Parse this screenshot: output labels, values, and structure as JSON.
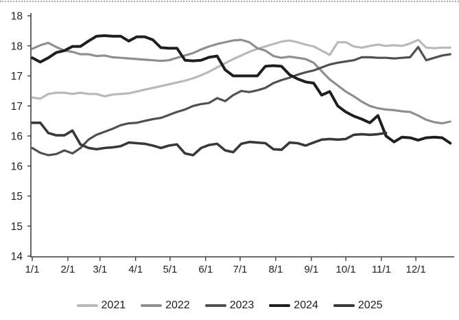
{
  "page": {
    "background": "#ffffff"
  },
  "chart_data": {
    "type": "line",
    "title": "",
    "grid": false,
    "legend_position": "bottom",
    "x_axis": {
      "unit": "month-day",
      "tick_labels": [
        "1/1",
        "2/1",
        "3/1",
        "4/1",
        "5/1",
        "6/1",
        "7/1",
        "8/1",
        "9/1",
        "10/1",
        "11/1",
        "12/1"
      ],
      "month_start_days": [
        0,
        31,
        59,
        90,
        120,
        151,
        181,
        212,
        243,
        273,
        304,
        334
      ],
      "days_in_year": 365
    },
    "y_axis": {
      "min": 14,
      "max": 18,
      "step": 0.5,
      "tick_values_top_to_bottom": [
        18,
        17.5,
        17,
        16.5,
        16,
        15.5,
        15,
        14.5,
        14
      ],
      "tick_labels_top_to_bottom": [
        "18",
        "18",
        "17",
        "17",
        "16",
        "16",
        "15",
        "15",
        "14"
      ]
    },
    "sampling": {
      "interval_days": 7,
      "first_day": 0
    },
    "series": [
      {
        "name": "2021",
        "color": "#b9b9b9",
        "stroke_width": 3.2,
        "values": [
          16.64,
          16.62,
          16.7,
          16.72,
          16.72,
          16.7,
          16.72,
          16.7,
          16.7,
          16.66,
          16.69,
          16.7,
          16.71,
          16.74,
          16.77,
          16.8,
          16.83,
          16.86,
          16.89,
          16.92,
          16.96,
          17.01,
          17.07,
          17.14,
          17.21,
          17.28,
          17.34,
          17.4,
          17.45,
          17.49,
          17.53,
          17.57,
          17.59,
          17.56,
          17.52,
          17.49,
          17.42,
          17.35,
          17.56,
          17.56,
          17.49,
          17.47,
          17.5,
          17.52,
          17.5,
          17.51,
          17.5,
          17.54,
          17.6,
          17.47,
          17.46,
          17.47,
          17.47
        ]
      },
      {
        "name": "2022",
        "color": "#8e8e8e",
        "stroke_width": 3.2,
        "values": [
          17.45,
          17.51,
          17.55,
          17.48,
          17.42,
          17.4,
          17.36,
          17.36,
          17.33,
          17.34,
          17.31,
          17.3,
          17.29,
          17.28,
          17.27,
          17.26,
          17.25,
          17.26,
          17.3,
          17.34,
          17.38,
          17.44,
          17.49,
          17.53,
          17.56,
          17.59,
          17.6,
          17.56,
          17.46,
          17.42,
          17.33,
          17.3,
          17.32,
          17.3,
          17.28,
          17.22,
          17.08,
          16.94,
          16.84,
          16.74,
          16.66,
          16.57,
          16.5,
          16.46,
          16.44,
          16.43,
          16.41,
          16.4,
          16.34,
          16.27,
          16.23,
          16.21,
          16.24
        ]
      },
      {
        "name": "2023",
        "color": "#505050",
        "stroke_width": 3.2,
        "values": [
          15.8,
          15.72,
          15.68,
          15.7,
          15.76,
          15.71,
          15.8,
          15.94,
          16.02,
          16.07,
          16.12,
          16.18,
          16.21,
          16.22,
          16.25,
          16.28,
          16.3,
          16.35,
          16.4,
          16.44,
          16.5,
          16.53,
          16.55,
          16.63,
          16.58,
          16.68,
          16.75,
          16.73,
          16.76,
          16.8,
          16.88,
          16.93,
          16.97,
          17.02,
          17.06,
          17.09,
          17.14,
          17.19,
          17.22,
          17.24,
          17.26,
          17.31,
          17.31,
          17.3,
          17.3,
          17.29,
          17.3,
          17.31,
          17.48,
          17.26,
          17.3,
          17.34,
          17.36
        ]
      },
      {
        "name": "2024",
        "color": "#1e1e1e",
        "stroke_width": 4,
        "values": [
          17.3,
          17.23,
          17.3,
          17.39,
          17.42,
          17.49,
          17.49,
          17.58,
          17.66,
          17.67,
          17.66,
          17.66,
          17.58,
          17.65,
          17.65,
          17.6,
          17.47,
          17.46,
          17.46,
          17.26,
          17.25,
          17.26,
          17.31,
          17.33,
          17.1,
          17.0,
          17.0,
          17.0,
          17.0,
          17.16,
          17.17,
          17.16,
          17.02,
          16.95,
          16.9,
          16.88,
          16.68,
          16.74,
          16.5,
          16.4,
          16.33,
          16.28,
          16.22,
          16.34,
          16.0,
          15.9,
          15.98,
          15.97,
          15.93,
          15.97,
          15.98,
          15.97,
          15.88
        ]
      },
      {
        "name": "2025",
        "color": "#383838",
        "stroke_width": 3.6,
        "values": [
          16.22,
          16.22,
          16.05,
          16.01,
          16.01,
          16.09,
          15.86,
          15.8,
          15.78,
          15.8,
          15.81,
          15.83,
          15.89,
          15.88,
          15.87,
          15.84,
          15.8,
          15.84,
          15.86,
          15.71,
          15.68,
          15.8,
          15.85,
          15.87,
          15.76,
          15.73,
          15.87,
          15.9,
          15.89,
          15.88,
          15.78,
          15.77,
          15.89,
          15.88,
          15.84,
          15.89,
          15.94,
          15.95,
          15.94,
          15.95,
          16.02,
          16.03,
          16.02,
          16.03,
          16.05
        ]
      }
    ]
  }
}
